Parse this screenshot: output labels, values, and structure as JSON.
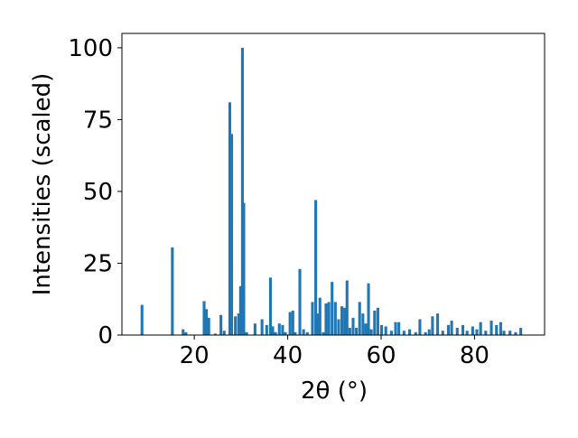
{
  "chart_data": {
    "type": "bar",
    "title": "",
    "xlabel": "2θ (°)",
    "ylabel": "Intensities (scaled)",
    "xlim": [
      4.5,
      95
    ],
    "ylim": [
      0,
      105
    ],
    "xticks": [
      20,
      40,
      60,
      80
    ],
    "yticks": [
      0,
      25,
      50,
      75,
      100
    ],
    "grid": false,
    "bar_width": 0.6,
    "bar_color": "#1f77b4",
    "x": [
      8.8,
      15.3,
      17.6,
      18.2,
      22.1,
      22.6,
      23.1,
      24.5,
      25.7,
      26.4,
      27.6,
      28.0,
      28.8,
      29.5,
      29.9,
      30.3,
      30.6,
      31.2,
      33.0,
      34.5,
      35.5,
      36.3,
      36.8,
      37.4,
      38.2,
      38.9,
      39.5,
      40.5,
      41.1,
      41.6,
      42.6,
      43.4,
      44.2,
      45.3,
      46.0,
      46.4,
      46.9,
      47.6,
      48.2,
      48.8,
      49.5,
      50.2,
      50.9,
      51.6,
      52.2,
      52.7,
      53.3,
      54.0,
      54.7,
      55.4,
      56.1,
      56.7,
      57.3,
      57.9,
      58.6,
      59.3,
      60.1,
      61.0,
      62.2,
      63.1,
      63.8,
      64.9,
      66.1,
      67.4,
      68.3,
      69.5,
      70.3,
      71.0,
      72.1,
      73.2,
      74.4,
      75.1,
      76.3,
      77.5,
      78.4,
      79.6,
      80.5,
      81.3,
      82.4,
      83.6,
      84.7,
      85.6,
      86.3,
      87.6,
      88.8,
      89.9
    ],
    "values": [
      10.5,
      30.5,
      2.0,
      1.0,
      11.8,
      9.0,
      6.0,
      0.5,
      7.0,
      1.5,
      81.0,
      70.0,
      6.5,
      7.5,
      17.0,
      100.0,
      46.0,
      1.0,
      4.0,
      5.5,
      3.5,
      20.0,
      3.0,
      1.0,
      4.0,
      3.5,
      1.0,
      8.0,
      8.5,
      1.0,
      23.0,
      2.0,
      1.0,
      11.5,
      47.0,
      7.5,
      13.0,
      1.0,
      11.0,
      11.5,
      18.5,
      11.5,
      5.5,
      10.0,
      9.5,
      19.0,
      2.5,
      6.0,
      2.5,
      11.5,
      7.5,
      4.0,
      18.0,
      2.0,
      8.5,
      9.5,
      3.5,
      3.0,
      1.5,
      4.5,
      4.5,
      1.5,
      2.0,
      1.0,
      5.5,
      1.0,
      2.0,
      6.5,
      7.5,
      1.5,
      3.5,
      5.0,
      2.5,
      3.5,
      1.5,
      3.0,
      2.0,
      4.5,
      1.5,
      5.0,
      3.5,
      4.5,
      1.5,
      1.5,
      1.0,
      2.5
    ]
  }
}
